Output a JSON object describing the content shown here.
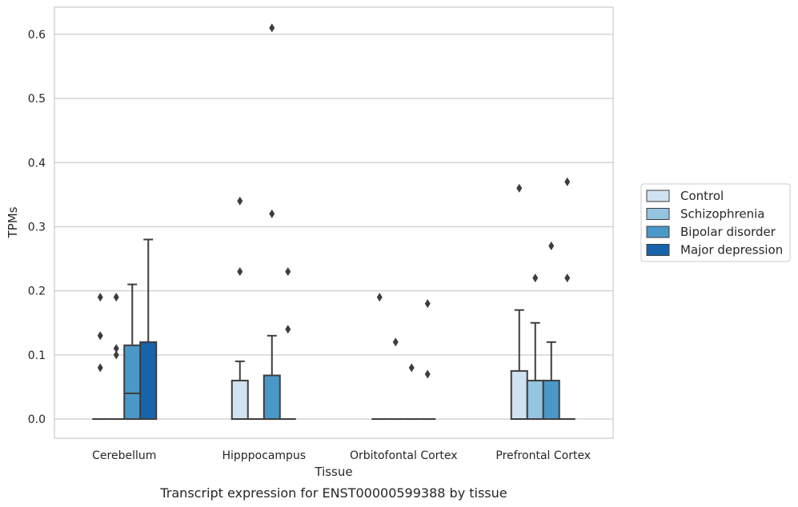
{
  "chart_data": {
    "type": "box",
    "xlabel": "Tissue",
    "ylabel": "TPMs",
    "caption": "Transcript expression for ENST00000599388 by tissue",
    "categories": [
      "Cerebellum",
      "Hipppocampus",
      "Orbitofontal Cortex",
      "Prefrontal Cortex"
    ],
    "ylim": [
      -0.03,
      0.64
    ],
    "yticks": [
      "0.0",
      "0.1",
      "0.2",
      "0.3",
      "0.4",
      "0.5",
      "0.6"
    ],
    "grid": "horizontal",
    "legend_position": "right",
    "series": [
      {
        "name": "Control",
        "color": "#d0e1f2",
        "boxes": [
          {
            "q1": 0,
            "median": 0,
            "q3": 0,
            "whisker_low": 0,
            "whisker_high": 0,
            "outliers": [
              0.19,
              0.13,
              0.08
            ]
          },
          {
            "q1": 0,
            "median": 0,
            "q3": 0.06,
            "whisker_low": 0,
            "whisker_high": 0.09,
            "outliers": [
              0.34,
              0.23
            ]
          },
          {
            "q1": 0,
            "median": 0,
            "q3": 0,
            "whisker_low": 0,
            "whisker_high": 0,
            "outliers": [
              0.19
            ]
          },
          {
            "q1": 0,
            "median": 0,
            "q3": 0.075,
            "whisker_low": 0,
            "whisker_high": 0.17,
            "outliers": [
              0.36
            ]
          }
        ]
      },
      {
        "name": "Schizophrenia",
        "color": "#94c4df",
        "boxes": [
          {
            "q1": 0,
            "median": 0,
            "q3": 0,
            "whisker_low": 0,
            "whisker_high": 0,
            "outliers": [
              0.19,
              0.11,
              0.1
            ]
          },
          {
            "q1": 0,
            "median": 0,
            "q3": 0,
            "whisker_low": 0,
            "whisker_high": 0,
            "outliers": []
          },
          {
            "q1": 0,
            "median": 0,
            "q3": 0,
            "whisker_low": 0,
            "whisker_high": 0,
            "outliers": [
              0.12
            ]
          },
          {
            "q1": 0,
            "median": 0,
            "q3": 0.06,
            "whisker_low": 0,
            "whisker_high": 0.15,
            "outliers": [
              0.22
            ]
          }
        ]
      },
      {
        "name": "Bipolar disorder",
        "color": "#4a98c9",
        "boxes": [
          {
            "q1": 0,
            "median": 0.04,
            "q3": 0.115,
            "whisker_low": 0,
            "whisker_high": 0.21,
            "outliers": []
          },
          {
            "q1": 0,
            "median": 0,
            "q3": 0.068,
            "whisker_low": 0,
            "whisker_high": 0.13,
            "outliers": [
              0.61,
              0.32
            ]
          },
          {
            "q1": 0,
            "median": 0,
            "q3": 0,
            "whisker_low": 0,
            "whisker_high": 0,
            "outliers": [
              0.08
            ]
          },
          {
            "q1": 0,
            "median": 0,
            "q3": 0.06,
            "whisker_low": 0,
            "whisker_high": 0.12,
            "outliers": [
              0.27
            ]
          }
        ]
      },
      {
        "name": "Major depression",
        "color": "#1764ab",
        "boxes": [
          {
            "q1": 0,
            "median": 0,
            "q3": 0.12,
            "whisker_low": 0,
            "whisker_high": 0.28,
            "outliers": []
          },
          {
            "q1": 0,
            "median": 0,
            "q3": 0,
            "whisker_low": 0,
            "whisker_high": 0,
            "outliers": [
              0.23,
              0.14
            ]
          },
          {
            "q1": 0,
            "median": 0,
            "q3": 0,
            "whisker_low": 0,
            "whisker_high": 0,
            "outliers": [
              0.18,
              0.07
            ]
          },
          {
            "q1": 0,
            "median": 0,
            "q3": 0,
            "whisker_low": 0,
            "whisker_high": 0,
            "outliers": [
              0.37,
              0.22
            ]
          }
        ]
      }
    ]
  }
}
